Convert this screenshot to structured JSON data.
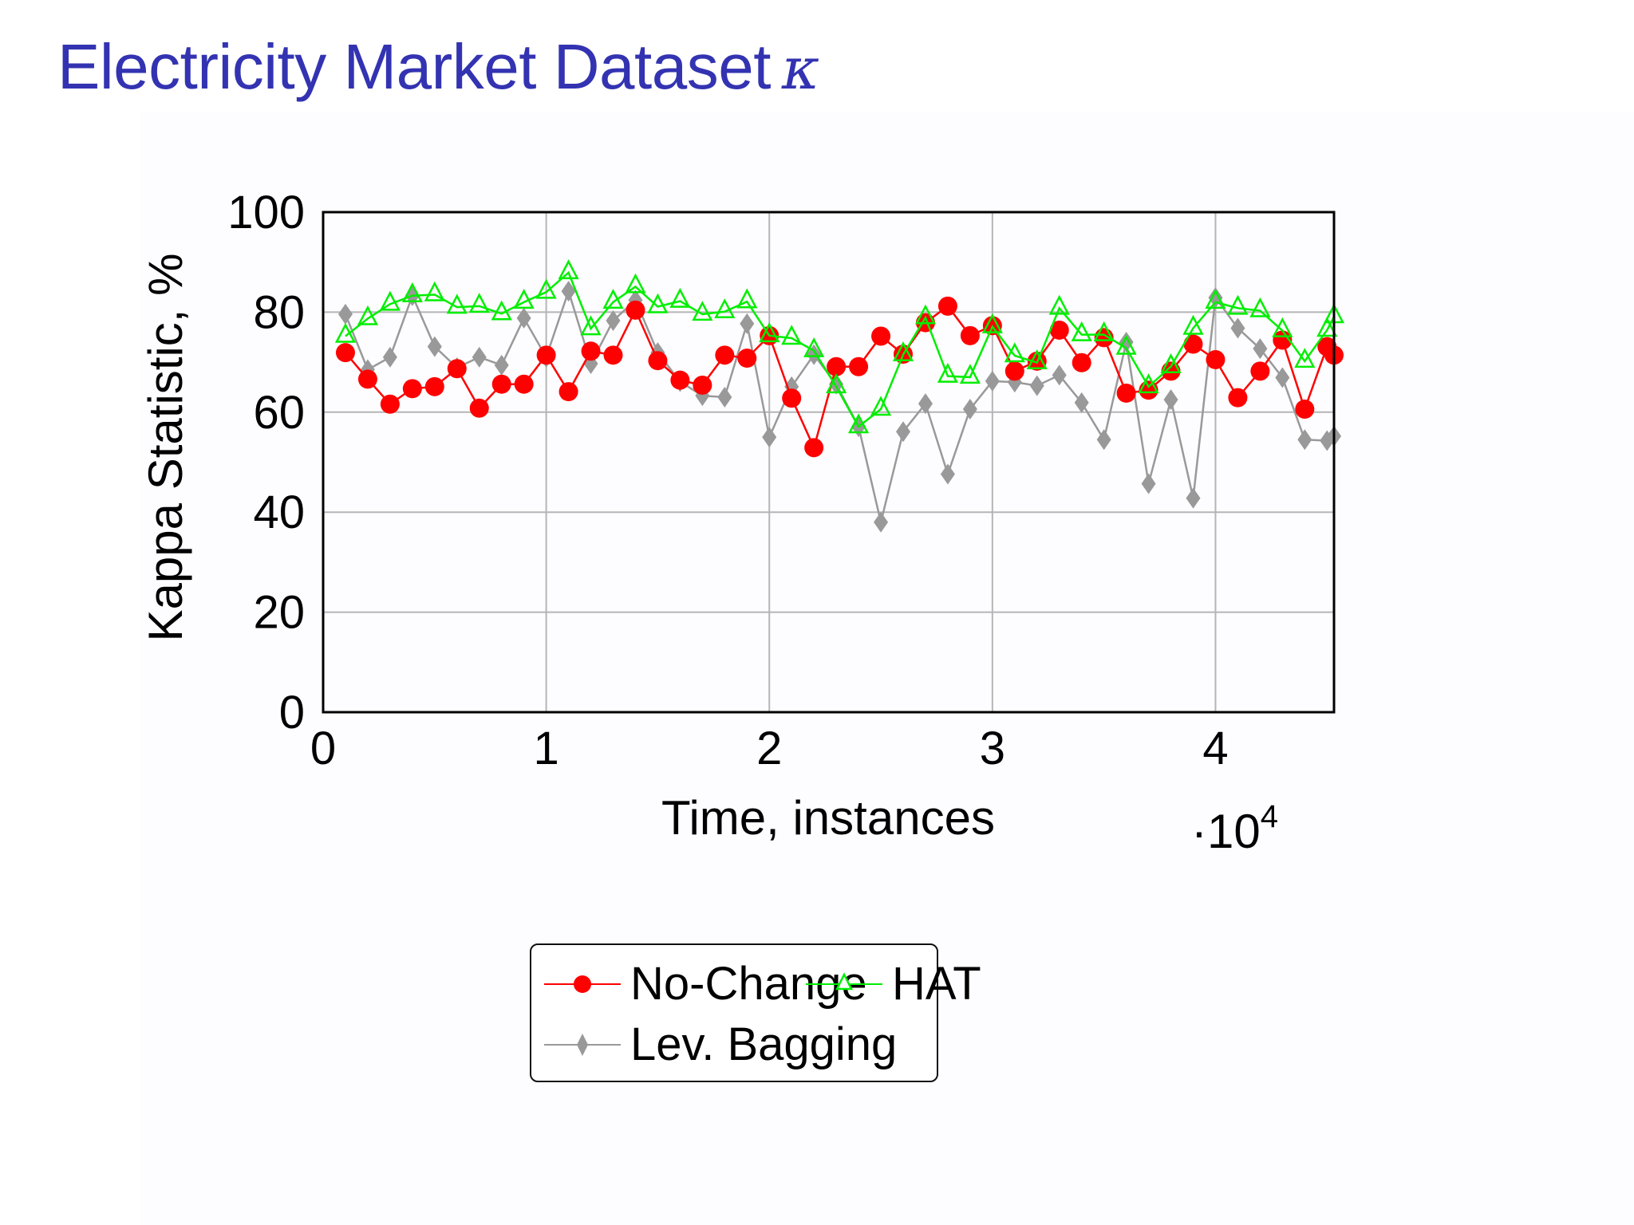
{
  "slide": {
    "title": "Electricity Market Dataset",
    "title_symbol": "κ",
    "title_color": "#3333b2"
  },
  "chart_data": {
    "type": "line",
    "title": "Electricity Market Dataset κ",
    "xlabel": "Time, instances",
    "x_multiplier_label": "·10",
    "x_multiplier_exp": "4",
    "ylabel": "Kappa Statistic, %",
    "xlim": [
      0,
      45312
    ],
    "ylim": [
      0,
      100
    ],
    "xticks": [
      0,
      1,
      2,
      3,
      4
    ],
    "xtick_labels": [
      "0",
      "1",
      "2",
      "3",
      "4"
    ],
    "yticks": [
      0,
      20,
      40,
      60,
      80,
      100
    ],
    "ytick_labels": [
      "0",
      "20",
      "40",
      "60",
      "80",
      "100"
    ],
    "grid": true,
    "legend_position": "below",
    "x": [
      1000,
      2000,
      3000,
      4000,
      5000,
      6000,
      7000,
      8000,
      9000,
      10000,
      11000,
      12000,
      13000,
      14000,
      15000,
      16000,
      17000,
      18000,
      19000,
      20000,
      21000,
      22000,
      23000,
      24000,
      25000,
      26000,
      27000,
      28000,
      29000,
      30000,
      31000,
      32000,
      33000,
      34000,
      35000,
      36000,
      37000,
      38000,
      39000,
      40000,
      41000,
      42000,
      43000,
      44000,
      45000,
      45312
    ],
    "series": [
      {
        "name": "No-Change",
        "color": "#ff0000",
        "marker": "circle",
        "values": [
          71.9,
          66.6,
          61.6,
          64.7,
          65.1,
          68.7,
          60.8,
          65.6,
          65.6,
          71.4,
          64.1,
          72.2,
          71.4,
          80.4,
          70.3,
          66.4,
          65.4,
          71.4,
          70.8,
          75.3,
          62.8,
          52.9,
          69.1,
          69.1,
          75.2,
          71.6,
          77.9,
          81.2,
          75.3,
          77.3,
          68.2,
          70.2,
          76.4,
          69.9,
          74.9,
          63.8,
          64.4,
          68.2,
          73.6,
          70.5,
          62.9,
          68.2,
          74.4,
          60.6,
          73.1,
          71.4
        ]
      },
      {
        "name": "HAT",
        "color": "#00ee00",
        "marker": "triangle-open",
        "values": [
          75.2,
          78.7,
          81.6,
          83.3,
          83.5,
          81.0,
          81.2,
          79.7,
          82.0,
          84.0,
          87.9,
          76.7,
          82.0,
          85.1,
          81.1,
          82.2,
          79.6,
          80.1,
          82.1,
          75.3,
          74.8,
          72.3,
          65.1,
          57.1,
          60.6,
          71.5,
          78.9,
          67.2,
          67.0,
          77.1,
          71.3,
          69.9,
          80.8,
          75.5,
          75.5,
          72.8,
          65.1,
          69.1,
          76.8,
          82.0,
          80.8,
          80.3,
          76.3,
          70.2,
          76.4,
          79.1
        ]
      },
      {
        "name": "Lev. Bagging",
        "color": "#999999",
        "marker": "diamond",
        "values": [
          79.6,
          68.5,
          71.0,
          83.3,
          73.1,
          68.9,
          71.0,
          69.4,
          78.8,
          71.0,
          84.2,
          69.7,
          78.3,
          82.4,
          71.9,
          66.1,
          63.3,
          63.0,
          77.7,
          55.0,
          65.1,
          71.5,
          65.6,
          57.1,
          38.0,
          56.1,
          61.7,
          47.6,
          60.6,
          66.2,
          66.0,
          65.3,
          67.4,
          61.9,
          54.5,
          74.0,
          45.7,
          62.5,
          42.8,
          82.9,
          76.8,
          72.7,
          66.9,
          54.5,
          54.3,
          55.2
        ]
      }
    ]
  },
  "legend": {
    "items": [
      {
        "label": "No-Change",
        "color": "#ff0000",
        "marker": "circle"
      },
      {
        "label": "HAT",
        "color": "#00ee00",
        "marker": "triangle-open"
      },
      {
        "label": "Lev. Bagging",
        "color": "#999999",
        "marker": "diamond"
      }
    ]
  }
}
